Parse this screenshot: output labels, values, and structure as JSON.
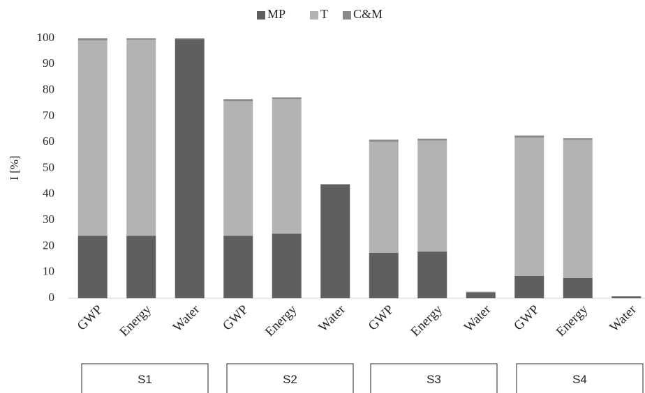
{
  "chart_data": {
    "type": "bar",
    "stacked": true,
    "ylabel": "I [%]",
    "ylim": [
      0,
      100
    ],
    "yticks": [
      0,
      10,
      20,
      30,
      40,
      50,
      60,
      70,
      80,
      90,
      100
    ],
    "grid": false,
    "legend_position": "top",
    "groups": [
      "S1",
      "S2",
      "S3",
      "S4"
    ],
    "categories": [
      "GWP",
      "Energy",
      "Water",
      "GWP",
      "Energy",
      "Water",
      "GWP",
      "Energy",
      "Water",
      "GWP",
      "Energy",
      "Water"
    ],
    "series": [
      {
        "name": "MP",
        "color": "#5f5f5f",
        "values": [
          24,
          24,
          99.7,
          24,
          24.8,
          43.7,
          17.5,
          18,
          2.2,
          8.6,
          7.8,
          0.6
        ]
      },
      {
        "name": "T",
        "color": "#b3b3b3",
        "values": [
          75.2,
          75.4,
          0,
          51.8,
          51.8,
          0,
          42.7,
          42.7,
          0,
          53.2,
          53.1,
          0
        ]
      },
      {
        "name": "C&M",
        "color": "#8a8a8a",
        "values": [
          0.8,
          0.6,
          0.3,
          0.8,
          0.7,
          0.2,
          0.8,
          0.7,
          0.3,
          0.8,
          0.7,
          0.2
        ]
      }
    ]
  }
}
